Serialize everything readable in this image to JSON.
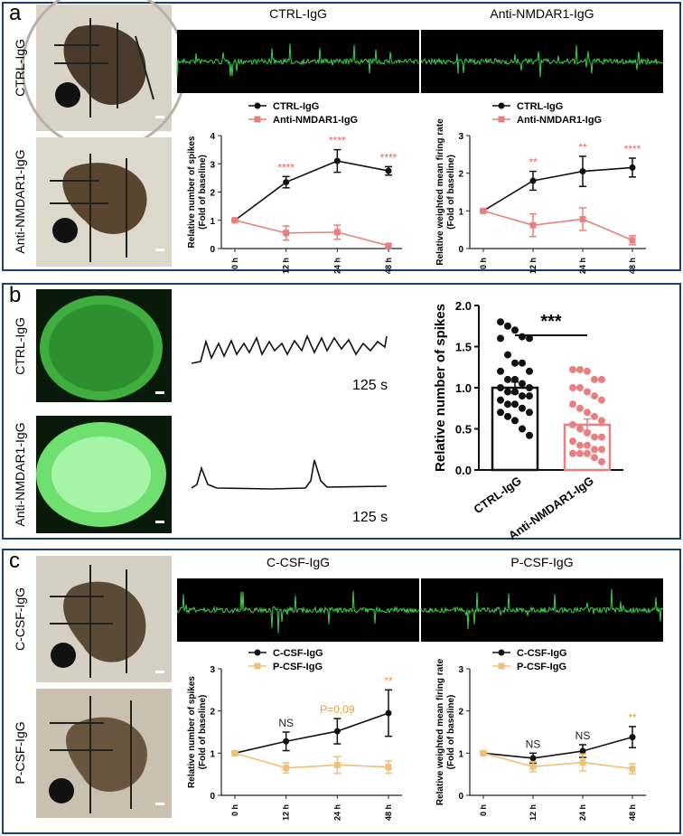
{
  "panels": [
    {
      "letter": "a",
      "rows": [
        "CTRL-IgG",
        "Anti-NMDAR1-IgG"
      ],
      "traces": [
        "CTRL-IgG",
        "Anti-NMDAR1-IgG"
      ]
    },
    {
      "letter": "b",
      "rows": [
        "CTRL-IgG",
        "Anti-NMDAR1-IgG"
      ],
      "trace_scale": [
        "125 s",
        "125 s"
      ]
    },
    {
      "letter": "c",
      "rows": [
        "C-CSF-IgG",
        "P-CSF-IgG"
      ],
      "traces": [
        "C-CSF-IgG",
        "P-CSF-IgG"
      ]
    }
  ],
  "chart_data": [
    {
      "type": "line",
      "ylabel": [
        "Relative number of spikes",
        "(Fold of baseline)"
      ],
      "categories": [
        "0 h",
        "12 h",
        "24 h",
        "48 h"
      ],
      "series": [
        {
          "name": "CTRL-IgG",
          "color": "#111111",
          "marker": "circle",
          "values": [
            1,
            2.35,
            3.1,
            2.75
          ],
          "errors": [
            0.03,
            0.2,
            0.4,
            0.15
          ]
        },
        {
          "name": "Anti-NMDAR1-IgG",
          "color": "#e88080",
          "marker": "square",
          "values": [
            1,
            0.55,
            0.58,
            0.1
          ],
          "errors": [
            0.03,
            0.25,
            0.25,
            0.05
          ]
        }
      ],
      "annotations": [
        null,
        "****",
        "****",
        "****"
      ],
      "annotation_colors": [
        null,
        "#e06666",
        "#e06666",
        "#e06666"
      ],
      "ylim": [
        0,
        4
      ],
      "yticks": [
        0,
        1,
        2,
        3,
        4
      ]
    },
    {
      "type": "line",
      "ylabel": [
        "Relative weighted mean firing rate",
        "(Fold of baseline)"
      ],
      "categories": [
        "0 h",
        "12 h",
        "24 h",
        "48 h"
      ],
      "series": [
        {
          "name": "CTRL-IgG",
          "color": "#111111",
          "marker": "circle",
          "values": [
            1,
            1.8,
            2.05,
            2.15
          ],
          "errors": [
            0.03,
            0.25,
            0.4,
            0.25
          ]
        },
        {
          "name": "Anti-NMDAR1-IgG",
          "color": "#e88080",
          "marker": "square",
          "values": [
            1,
            0.62,
            0.78,
            0.22
          ],
          "errors": [
            0.03,
            0.3,
            0.3,
            0.12
          ]
        }
      ],
      "annotations": [
        null,
        "**",
        "**",
        "****"
      ],
      "annotation_colors": [
        null,
        "#e06666",
        "#e06666",
        "#e06666"
      ],
      "ylim": [
        0,
        3
      ],
      "yticks": [
        0,
        1,
        2,
        3
      ]
    },
    {
      "type": "bar",
      "ylabel": "Relative number of spikes",
      "categories": [
        "CTRL-IgG",
        "Anti-NMDAR1-IgG"
      ],
      "values": [
        1.0,
        0.55
      ],
      "errors": [
        0.07,
        0.07
      ],
      "colors": [
        "#111111",
        "#e88080"
      ],
      "points": [
        [
          1.8,
          1.75,
          1.7,
          1.62,
          1.6,
          1.6,
          1.4,
          1.3,
          1.3,
          1.2,
          1.2,
          1.1,
          1.1,
          1.05,
          1.0,
          1.0,
          0.95,
          0.95,
          0.9,
          0.9,
          0.85,
          0.8,
          0.8,
          0.75,
          0.7,
          0.7,
          0.65,
          0.6,
          0.5,
          0.42
        ],
        [
          1.22,
          1.22,
          1.2,
          1.1,
          1.1,
          1.0,
          1.0,
          0.95,
          0.9,
          0.85,
          0.8,
          0.75,
          0.7,
          0.65,
          0.6,
          0.55,
          0.5,
          0.45,
          0.4,
          0.4,
          0.35,
          0.3,
          0.3,
          0.25,
          0.25,
          0.2,
          0.2,
          0.2,
          0.15,
          0.1
        ]
      ],
      "significance": "***",
      "ylim": [
        0,
        2
      ],
      "yticks": [
        {
          "value": 0,
          "label": "0.0"
        },
        0.5,
        {
          "value": 1,
          "label": "1.0"
        },
        1.5,
        {
          "value": 2,
          "label": "2.0"
        }
      ]
    },
    {
      "type": "line",
      "ylabel": [
        "Relative number of spikes",
        "(Fold of baseline)"
      ],
      "categories": [
        "0 h",
        "12 h",
        "24 h",
        "48 h"
      ],
      "series": [
        {
          "name": "C-CSF-IgG",
          "color": "#111111",
          "marker": "circle",
          "values": [
            1,
            1.28,
            1.52,
            1.95
          ],
          "errors": [
            0.03,
            0.22,
            0.3,
            0.55
          ]
        },
        {
          "name": "P-CSF-IgG",
          "color": "#f0c078",
          "marker": "square",
          "values": [
            1,
            0.65,
            0.72,
            0.67
          ],
          "errors": [
            0.03,
            0.12,
            0.2,
            0.15
          ]
        }
      ],
      "annotations": [
        null,
        "NS",
        "P=0.09",
        "**"
      ],
      "annotation_colors": [
        null,
        "#222222",
        "#e8a030",
        "#e8a030"
      ],
      "ylim": [
        0,
        3
      ],
      "yticks": [
        0,
        1,
        2,
        3
      ]
    },
    {
      "type": "line",
      "ylabel": [
        "Relative weighted mean firing rate",
        "(Fold of baseline)"
      ],
      "categories": [
        "0 h",
        "12 h",
        "24 h",
        "48 h"
      ],
      "series": [
        {
          "name": "C-CSF-IgG",
          "color": "#111111",
          "marker": "circle",
          "values": [
            1,
            0.88,
            1.05,
            1.38
          ],
          "errors": [
            0.03,
            0.12,
            0.15,
            0.25
          ]
        },
        {
          "name": "P-CSF-IgG",
          "color": "#f0c078",
          "marker": "square",
          "values": [
            1,
            0.68,
            0.78,
            0.63
          ],
          "errors": [
            0.03,
            0.12,
            0.2,
            0.12
          ]
        }
      ],
      "annotations": [
        null,
        "NS",
        "NS",
        "**"
      ],
      "annotation_colors": [
        null,
        "#222222",
        "#222222",
        "#e8a030"
      ],
      "ylim": [
        0,
        3
      ],
      "yticks": [
        0,
        1,
        2,
        3
      ]
    }
  ]
}
